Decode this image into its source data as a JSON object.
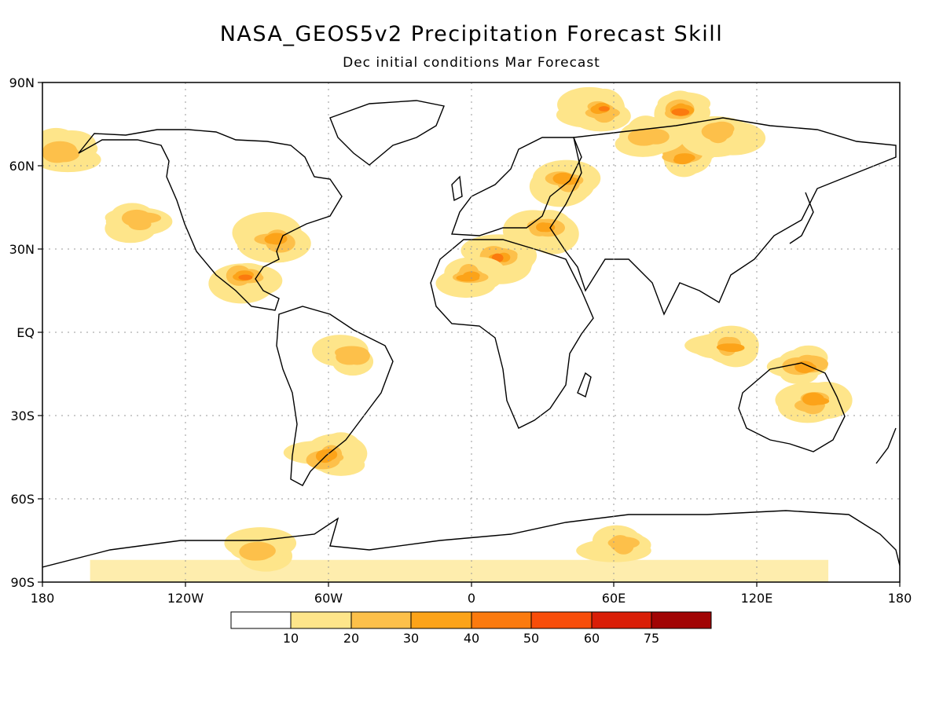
{
  "title": "NASA_GEOS5v2 Precipitation Forecast Skill",
  "subtitle": "Dec initial conditions   Mar Forecast",
  "map": {
    "lat_ticks": [
      "90N",
      "60N",
      "30N",
      "EQ",
      "30S",
      "60S",
      "90S"
    ],
    "lon_ticks": [
      "180",
      "120W",
      "60W",
      "0",
      "60E",
      "120E",
      "180"
    ],
    "grid": true
  },
  "colorbar": {
    "labels": [
      "10",
      "20",
      "30",
      "40",
      "50",
      "60",
      "75"
    ],
    "colors": [
      "#ffffff",
      "#fee58a",
      "#fdc04a",
      "#fca319",
      "#fb7a0e",
      "#f84d0a",
      "#d91e07",
      "#a10404"
    ]
  },
  "chart_data": {
    "type": "heatmap",
    "title": "NASA_GEOS5v2 Precipitation Forecast Skill",
    "subtitle": "Dec initial conditions   Mar Forecast",
    "xlabel": "",
    "ylabel": "",
    "xlim": [
      -180,
      180
    ],
    "ylim": [
      -90,
      90
    ],
    "grid": true,
    "levels": [
      10,
      20,
      30,
      40,
      50,
      60,
      75
    ],
    "level_colors": [
      "#ffffff",
      "#fee58a",
      "#fdc04a",
      "#fca319",
      "#fb7a0e",
      "#f84d0a",
      "#d91e07",
      "#a10404"
    ],
    "skill_regions": [
      {
        "lon": 90,
        "lat": 63,
        "level": 3
      },
      {
        "lon": 75,
        "lat": 70,
        "level": 2
      },
      {
        "lon": 105,
        "lat": 72,
        "level": 2
      },
      {
        "lon": 55,
        "lat": 80,
        "level": 4
      },
      {
        "lon": 88,
        "lat": 80,
        "level": 4
      },
      {
        "lon": 12,
        "lat": 27,
        "level": 4
      },
      {
        "lon": 0,
        "lat": 20,
        "level": 3
      },
      {
        "lon": 30,
        "lat": 38,
        "level": 3
      },
      {
        "lon": -95,
        "lat": 20,
        "level": 4
      },
      {
        "lon": -82,
        "lat": 33,
        "level": 3
      },
      {
        "lon": -50,
        "lat": -8,
        "level": 2
      },
      {
        "lon": 108,
        "lat": -5,
        "level": 3
      },
      {
        "lon": 145,
        "lat": -25,
        "level": 3
      },
      {
        "lon": 140,
        "lat": -12,
        "level": 3
      },
      {
        "lon": -173,
        "lat": 65,
        "level": 2
      },
      {
        "lon": 65,
        "lat": -77,
        "level": 2
      },
      {
        "lon": -90,
        "lat": -78,
        "level": 2
      },
      {
        "lon": -60,
        "lat": -45,
        "level": 3
      },
      {
        "lon": -140,
        "lat": 40,
        "level": 2
      },
      {
        "lon": 40,
        "lat": 55,
        "level": 3
      }
    ]
  }
}
